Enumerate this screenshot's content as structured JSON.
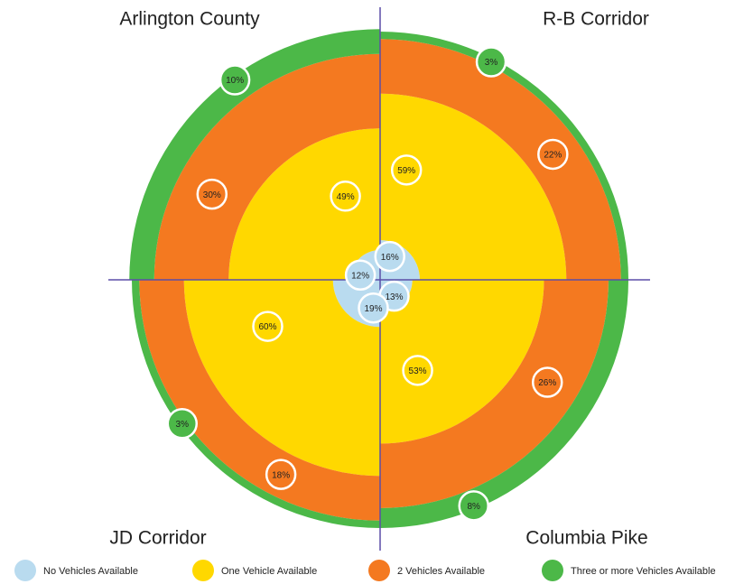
{
  "chart_data": {
    "type": "quadrant-rings",
    "categories": [
      "Arlington County",
      "R-B Corridor",
      "Columbia Pike",
      "JD Corridor"
    ],
    "series": [
      {
        "name": "No Vehicles Available",
        "color": "#b9dbef",
        "values": [
          12,
          16,
          13,
          19
        ],
        "value_labels": [
          "12%",
          "16%",
          "13%",
          "19%"
        ]
      },
      {
        "name": "One Vehicle Available",
        "color": "#ffd800",
        "values": [
          49,
          59,
          53,
          60
        ],
        "value_labels": [
          "49%",
          "59%",
          "53%",
          "60%"
        ]
      },
      {
        "name": "2 Vehicles Available",
        "color": "#f47920",
        "values": [
          30,
          22,
          26,
          18
        ],
        "value_labels": [
          "30%",
          "22%",
          "26%",
          "18%"
        ]
      },
      {
        "name": "Three or more Vehicles Available",
        "color": "#4cb848",
        "values": [
          10,
          3,
          8,
          3
        ],
        "value_labels": [
          "10%",
          "3%",
          "8%",
          "3%"
        ]
      }
    ]
  }
}
